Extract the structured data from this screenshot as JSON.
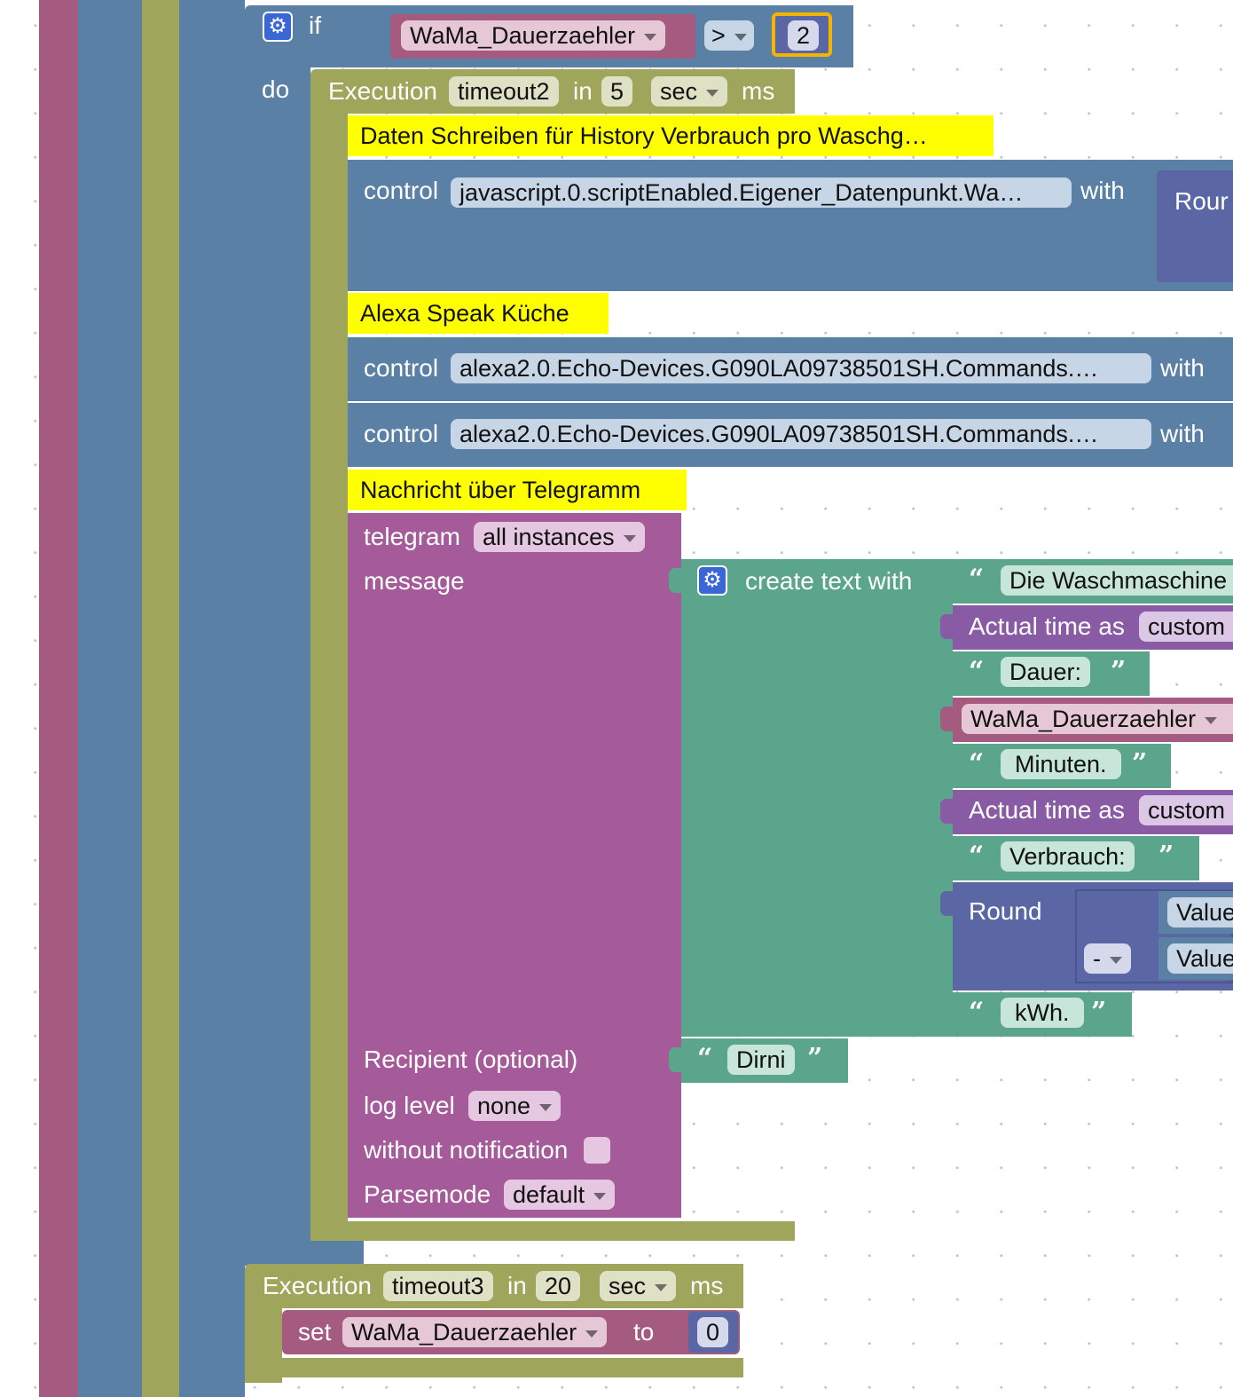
{
  "if_block": {
    "if_label": "if",
    "do_label": "do",
    "variable": "WaMa_Dauerzaehler",
    "operator": ">",
    "value": "2"
  },
  "timeout_block1": {
    "label": "Execution",
    "name": "timeout2",
    "in_label": "in",
    "delay": "5",
    "unit": "sec",
    "ms_label": "ms"
  },
  "comments": {
    "history": "Daten Schreiben für History Verbrauch pro Waschg…",
    "alexa": "Alexa Speak Küche",
    "telegram": "Nachricht über Telegramm"
  },
  "controls": [
    {
      "label": "control",
      "target": "javascript.0.scriptEnabled.Eigener_Datenpunkt.Wa…",
      "with": "with",
      "value_partial": "Rour"
    },
    {
      "label": "control",
      "target": "alexa2.0.Echo-Devices.G090LA09738501SH.Commands.…",
      "with": "with"
    },
    {
      "label": "control",
      "target": "alexa2.0.Echo-Devices.G090LA09738501SH.Commands.…",
      "with": "with"
    }
  ],
  "telegram": {
    "label": "telegram",
    "instance": "all instances",
    "message_label": "message",
    "recipient_label": "Recipient (optional)",
    "recipient_value": "Dirni",
    "log_label": "log level",
    "log_value": "none",
    "notif_label": "without notification",
    "parse_label": "Parsemode",
    "parse_value": "default"
  },
  "create_text": {
    "label": "create text with",
    "items": [
      {
        "type": "text",
        "value": "Die Waschmaschine"
      },
      {
        "type": "time",
        "label": "Actual time as",
        "value": "custom"
      },
      {
        "type": "text",
        "value": "Dauer:"
      },
      {
        "type": "var",
        "value": "WaMa_Dauerzaehler"
      },
      {
        "type": "text",
        "value": "Minuten."
      },
      {
        "type": "time",
        "label": "Actual time as",
        "value": "custom"
      },
      {
        "type": "text",
        "value": "Verbrauch:"
      },
      {
        "type": "round",
        "label": "Round",
        "op": "-",
        "value_a": "Value",
        "value_b": "Value"
      },
      {
        "type": "text",
        "value": "kWh."
      }
    ]
  },
  "timeout_block2": {
    "label": "Execution",
    "name": "timeout3",
    "in_label": "in",
    "delay": "20",
    "unit": "sec",
    "ms_label": "ms"
  },
  "set_block": {
    "label": "set",
    "variable": "WaMa_Dauerzaehler",
    "to_label": "to",
    "value": "0"
  },
  "colors": {
    "variables": "#a55b80",
    "logic": "#5b80a5",
    "timeouts": "#9fa55b",
    "telegram": "#a55b99",
    "text": "#5ba58c",
    "math": "#5b67a5",
    "comment": "#ffff00",
    "highlight": "#f4b400"
  }
}
